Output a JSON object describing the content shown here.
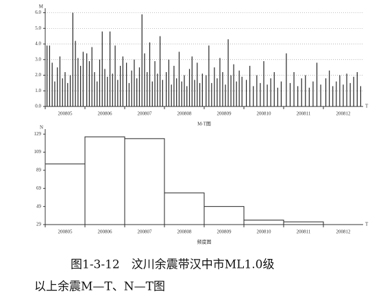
{
  "chart_data": [
    {
      "type": "spike",
      "title": "M-T图",
      "y_label": "M",
      "x_label": "T",
      "categories": [
        "200805",
        "200806",
        "200807",
        "200808",
        "200809",
        "200810",
        "200811",
        "200812"
      ],
      "events": [
        [
          3.9,
          3.9,
          2.8,
          1.6,
          2.5,
          3.2,
          1.8,
          2.2,
          1.5,
          2.0,
          6.0,
          4.2,
          3.1,
          2.6,
          3.5
        ],
        [
          3.4,
          2.9,
          3.8,
          2.2,
          1.6,
          3.0,
          4.8,
          2.4,
          1.9,
          4.8,
          2.1,
          3.9,
          1.7,
          2.6,
          3.2
        ],
        [
          2.8,
          1.5,
          2.3,
          3.0,
          1.8,
          2.5,
          5.9,
          3.4,
          2.2,
          4.1,
          1.6,
          2.9,
          2.1,
          4.5,
          1.7
        ],
        [
          2.2,
          3.0,
          1.4,
          2.6,
          1.8,
          3.5,
          1.6,
          2.0,
          1.3,
          2.4,
          3.2,
          1.7,
          2.8,
          1.5,
          2.1
        ],
        [
          2.0,
          3.9,
          1.5,
          2.5,
          1.8,
          3.1,
          2.2,
          1.4,
          4.3,
          2.0,
          2.7,
          1.6,
          2.3,
          1.9
        ],
        [
          1.7,
          2.6,
          1.3,
          2.0,
          1.5,
          2.9,
          1.4,
          1.8,
          2.2,
          1.2,
          1.6
        ],
        [
          3.4,
          1.5,
          2.2,
          1.3,
          1.8,
          2.0,
          1.2,
          1.6,
          2.8,
          1.4
        ],
        [
          1.8,
          2.3,
          1.3,
          1.6,
          2.0,
          1.4,
          2.1,
          1.5,
          1.9,
          2.2,
          1.3
        ]
      ],
      "color": "#222222",
      "ylim": [
        0,
        6.2
      ],
      "yticks": [
        {
          "value": 0,
          "label": "0.0"
        },
        {
          "value": 1,
          "label": "1.0"
        },
        {
          "value": 2,
          "label": "2.0"
        },
        {
          "value": 3,
          "label": "3.0"
        },
        {
          "value": 4,
          "label": "4.0"
        },
        {
          "value": 5,
          "label": "5.0"
        },
        {
          "value": 6,
          "label": "6.0"
        }
      ],
      "grid": true
    },
    {
      "type": "histogram",
      "title": "频度图",
      "y_label": "N",
      "x_label": "T",
      "categories": [
        "200805",
        "200806",
        "200807",
        "200808",
        "200809",
        "200810",
        "200811",
        "200812"
      ],
      "values": [
        96,
        126,
        124,
        64,
        49,
        34,
        32,
        27
      ],
      "color": "#ffffff",
      "ylim": [
        29,
        133
      ],
      "yticks": [
        29,
        49,
        69,
        89,
        109,
        129
      ],
      "grid": false
    }
  ],
  "caption": [
    "图1-3-12　汶川余震带汉中市ML1.0级",
    "以上余震M—T、N—T图"
  ]
}
